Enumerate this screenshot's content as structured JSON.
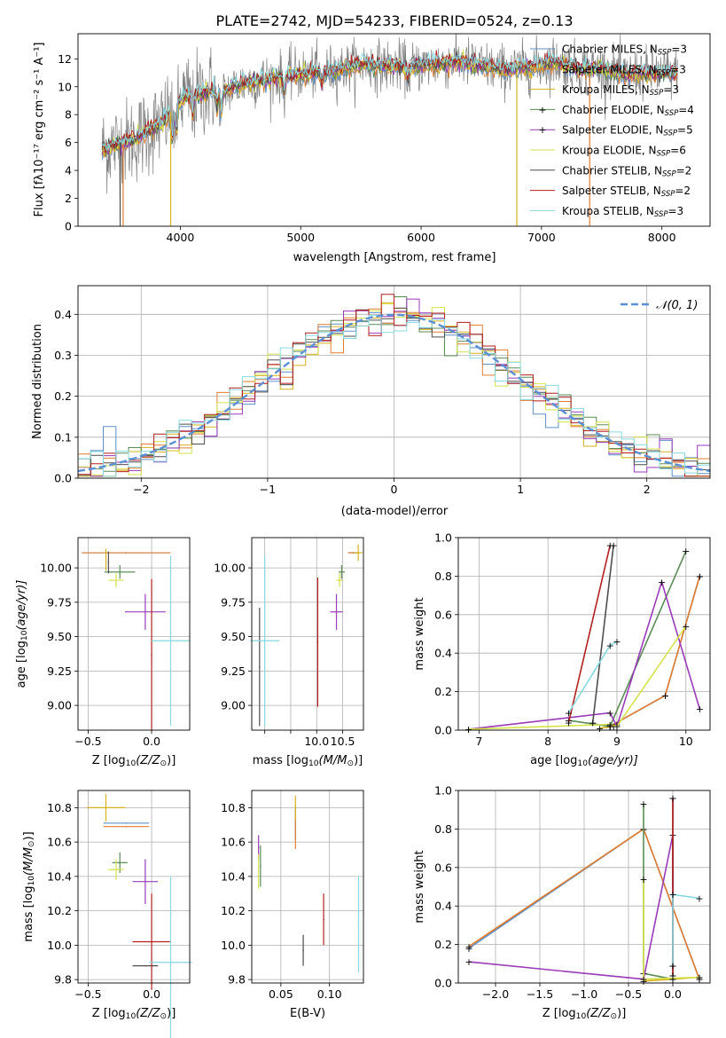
{
  "colors": {
    "Chabrier MILES": "#5f8fc7",
    "Salpeter MILES": "#e07d31",
    "Kroupa MILES": "#d6b11e",
    "Chabrier ELODIE": "#5c8b58",
    "Salpeter ELODIE": "#9a3bb8",
    "Kroupa ELODIE": "#d6e24b",
    "Chabrier STELIB": "#4d4d4d",
    "Salpeter STELIB": "#b41f1f",
    "Kroupa STELIB": "#86d9e0",
    "gauss": "#5b8fd6"
  },
  "chart_data": [
    {
      "id": "spectrum",
      "type": "line",
      "title": "PLATE=2742, MJD=54233, FIBERID=0524, z=0.13",
      "xlabel": "wavelength [Angstrom, rest frame]",
      "ylabel": "Flux [fλ10⁻¹⁷ erg cm⁻² s⁻¹ A⁻¹]",
      "xlim": [
        3150,
        8400
      ],
      "ylim": [
        0,
        13.8
      ],
      "xticks": [
        4000,
        5000,
        6000,
        7000,
        8000
      ],
      "yticks": [
        0,
        2,
        4,
        6,
        8,
        10,
        12
      ],
      "grid": false,
      "legend_position": "right",
      "continuum": {
        "x": [
          3350,
          3450,
          3550,
          3650,
          3750,
          3850,
          3950,
          4050,
          4150,
          4250,
          4350,
          4500,
          4700,
          4900,
          5100,
          5300,
          5500,
          5700,
          5900,
          6100,
          6300,
          6500,
          6700,
          6900,
          7100,
          7300,
          7500,
          7700,
          7900,
          8130
        ],
        "y": [
          5.5,
          5.8,
          6.0,
          6.4,
          6.9,
          7.4,
          8.6,
          9.3,
          9.4,
          9.8,
          9.6,
          10.2,
          10.5,
          10.8,
          11.0,
          11.2,
          11.6,
          11.5,
          11.4,
          11.6,
          11.8,
          11.5,
          11.2,
          11.4,
          11.8,
          11.3,
          11.3,
          10.8,
          11.0,
          10.9
        ]
      },
      "absorption_features": [
        {
          "x": 3934,
          "depth": 2.2
        },
        {
          "x": 3969,
          "depth": 2.0
        },
        {
          "x": 4102,
          "depth": 1.4
        },
        {
          "x": 4304,
          "depth": 1.3
        },
        {
          "x": 4340,
          "depth": 1.5
        },
        {
          "x": 4861,
          "depth": 1.1
        },
        {
          "x": 5175,
          "depth": 1.0
        },
        {
          "x": 5890,
          "depth": 0.8
        }
      ],
      "spikes": [
        {
          "x": 3500,
          "y_bottom": 0,
          "series": "Chabrier STELIB"
        },
        {
          "x": 3525,
          "y_bottom": 0,
          "series": "Salpeter MILES"
        },
        {
          "x": 3920,
          "y_bottom": 0,
          "series": "Kroupa MILES"
        },
        {
          "x": 6795,
          "y_bottom": 0,
          "series": "Kroupa MILES"
        },
        {
          "x": 7400,
          "y_bottom": 0,
          "series": "Salpeter MILES"
        }
      ],
      "series": [
        {
          "name": "Chabrier MILES",
          "n_ssp": 3
        },
        {
          "name": "Salpeter MILES",
          "n_ssp": 3
        },
        {
          "name": "Kroupa MILES",
          "n_ssp": 3
        },
        {
          "name": "Chabrier ELODIE",
          "n_ssp": 4
        },
        {
          "name": "Salpeter ELODIE",
          "n_ssp": 5
        },
        {
          "name": "Kroupa ELODIE",
          "n_ssp": 6
        },
        {
          "name": "Chabrier STELIB",
          "n_ssp": 2
        },
        {
          "name": "Salpeter STELIB",
          "n_ssp": 2
        },
        {
          "name": "Kroupa STELIB",
          "n_ssp": 3
        }
      ],
      "legend_labels": [
        {
          "pre": "Chabrier MILES, N",
          "sub": "SSP",
          "post": "=3"
        },
        {
          "pre": "Salpeter MILES, N",
          "sub": "SSP",
          "post": "=3"
        },
        {
          "pre": "Kroupa MILES, N",
          "sub": "SSP",
          "post": "=3"
        },
        {
          "pre": "Chabrier ELODIE, N",
          "sub": "SSP",
          "post": "=4"
        },
        {
          "pre": "Salpeter ELODIE, N",
          "sub": "SSP",
          "post": "=5"
        },
        {
          "pre": "Kroupa ELODIE, N",
          "sub": "SSP",
          "post": "=6"
        },
        {
          "pre": "Chabrier STELIB, N",
          "sub": "SSP",
          "post": "=2"
        },
        {
          "pre": "Salpeter STELIB, N",
          "sub": "SSP",
          "post": "=2"
        },
        {
          "pre": "Kroupa STELIB, N",
          "sub": "SSP",
          "post": "=3"
        }
      ]
    },
    {
      "id": "residuals",
      "type": "line",
      "xlabel": "(data-model)/error",
      "ylabel": "Normed distribution",
      "xlim": [
        -2.5,
        2.5
      ],
      "ylim": [
        0,
        0.47
      ],
      "xticks": [
        -2,
        -1,
        0,
        1,
        2
      ],
      "xtick_labels": [
        "−2",
        "−1",
        "0",
        "1",
        "2"
      ],
      "yticks": [
        0,
        0.1,
        0.2,
        0.3,
        0.4
      ],
      "ytick_labels": [
        "0.0",
        "0.1",
        "0.2",
        "0.3",
        "0.4"
      ],
      "grid": true,
      "legend_position": "upper right",
      "bins": {
        "start": -2.5,
        "width": 0.1,
        "count": 50
      },
      "reference_curve": {
        "name": "𝒩(0, 1)",
        "mean": 0,
        "sigma": 1
      }
    },
    {
      "id": "age_vs_Z",
      "type": "scatter",
      "xlabel_parts": [
        "Z [log",
        "10",
        "(Z/Z",
        "⊙",
        ")]"
      ],
      "ylabel_parts": [
        "age  [log",
        "10",
        "(age/yr)]"
      ],
      "xlim": [
        -0.58,
        0.3
      ],
      "ylim": [
        8.82,
        10.22
      ],
      "xticks": [
        -0.5,
        0.0
      ],
      "xtick_labels": [
        "−0.5",
        "0.0"
      ],
      "yticks": [
        9.0,
        9.25,
        9.5,
        9.75,
        10.0
      ],
      "ytick_labels": [
        "9.00",
        "9.25",
        "9.50",
        "9.75",
        "10.00"
      ],
      "grid": true,
      "points": [
        {
          "series": "Chabrier MILES",
          "x": -0.2,
          "y": 10.11,
          "xerr": 0.35,
          "yerr": 0.0
        },
        {
          "series": "Salpeter MILES",
          "x": -0.2,
          "y": 10.11,
          "xerr": 0.35,
          "yerr": 0.0
        },
        {
          "series": "Kroupa MILES",
          "x": -0.36,
          "y": 10.06,
          "xerr": 0.0,
          "yerr": 0.08
        },
        {
          "series": "Chabrier ELODIE",
          "x": -0.25,
          "y": 9.97,
          "xerr": 0.12,
          "yerr": 0.05
        },
        {
          "series": "Salpeter ELODIE",
          "x": -0.05,
          "y": 9.68,
          "xerr": 0.16,
          "yerr": 0.13
        },
        {
          "series": "Kroupa ELODIE",
          "x": -0.28,
          "y": 9.91,
          "xerr": 0.06,
          "yerr": 0.05
        },
        {
          "series": "Chabrier STELIB",
          "x": -0.34,
          "y": 10.04,
          "xerr": 0.0,
          "yerr": 0.08
        },
        {
          "series": "Salpeter STELIB",
          "x": 0.0,
          "y": 9.37,
          "xerr": 0.0,
          "yerr": 0.55
        },
        {
          "series": "Kroupa STELIB",
          "x": 0.15,
          "y": 9.47,
          "xerr": 0.15,
          "yerr": 0.62
        }
      ]
    },
    {
      "id": "age_vs_mass",
      "type": "scatter",
      "xlabel_parts": [
        "mass [log",
        "10",
        "(M/M",
        "⊙",
        ")]"
      ],
      "xlim": [
        8.75,
        10.9
      ],
      "ylim": [
        8.82,
        10.22
      ],
      "xticks": [
        9.0,
        9.5,
        10.0,
        10.5
      ],
      "xtick_labels": [
        "",
        "",
        "10.0",
        "10.5"
      ],
      "yticks": [
        9.0,
        9.25,
        9.5,
        9.75,
        10.0
      ],
      "ytick_labels": [
        "9.00",
        "9.25",
        "9.50",
        "9.75",
        "10.00"
      ],
      "grid": true,
      "points": [
        {
          "series": "Chabrier MILES",
          "x": 10.72,
          "y": 10.11,
          "xerr": 0.1,
          "yerr": 0.0
        },
        {
          "series": "Salpeter MILES",
          "x": 10.7,
          "y": 10.11,
          "xerr": 0.1,
          "yerr": 0.0
        },
        {
          "series": "Kroupa MILES",
          "x": 10.8,
          "y": 10.11,
          "xerr": 0.08,
          "yerr": 0.06
        },
        {
          "series": "Chabrier ELODIE",
          "x": 10.48,
          "y": 9.97,
          "xerr": 0.06,
          "yerr": 0.05
        },
        {
          "series": "Salpeter ELODIE",
          "x": 10.38,
          "y": 9.68,
          "xerr": 0.12,
          "yerr": 0.13
        },
        {
          "series": "Kroupa ELODIE",
          "x": 10.44,
          "y": 9.91,
          "xerr": 0.06,
          "yerr": 0.05
        },
        {
          "series": "Chabrier STELIB",
          "x": 8.9,
          "y": 9.28,
          "xerr": 0.0,
          "yerr": 0.43
        },
        {
          "series": "Salpeter STELIB",
          "x": 10.02,
          "y": 9.46,
          "xerr": 0.0,
          "yerr": 0.47
        },
        {
          "series": "Kroupa STELIB",
          "x": 9.0,
          "y": 9.47,
          "xerr": 0.28,
          "yerr": 0.62
        }
      ]
    },
    {
      "id": "mass_weight_vs_age",
      "type": "line",
      "xlabel_parts": [
        "age  [log",
        "10",
        "(age/yr)]"
      ],
      "ylabel": "mass weight",
      "xlim": [
        6.7,
        10.35
      ],
      "ylim": [
        0,
        1.0
      ],
      "xticks": [
        7,
        8,
        9,
        10
      ],
      "yticks": [
        0,
        0.2,
        0.4,
        0.6,
        0.8,
        1.0
      ],
      "ytick_labels": [
        "0.0",
        "0.2",
        "0.4",
        "0.6",
        "0.8",
        "1.0"
      ],
      "grid": true,
      "series": [
        {
          "name": "Chabrier MILES",
          "x": [
            8.9,
            9.7,
            10.2
          ],
          "y": [
            0.02,
            0.18,
            0.8
          ]
        },
        {
          "name": "Salpeter MILES",
          "x": [
            8.9,
            9.7,
            10.2
          ],
          "y": [
            0.02,
            0.18,
            0.8
          ]
        },
        {
          "name": "Kroupa MILES",
          "x": [
            8.75,
            8.95,
            9.0
          ],
          "y": [
            0.01,
            0.02,
            0.03
          ]
        },
        {
          "name": "Chabrier ELODIE",
          "x": [
            8.3,
            8.9,
            10.0
          ],
          "y": [
            0.05,
            0.02,
            0.93
          ]
        },
        {
          "name": "Salpeter ELODIE",
          "x": [
            6.85,
            8.9,
            9.0,
            9.65,
            10.2
          ],
          "y": [
            0.005,
            0.09,
            0.02,
            0.77,
            0.11
          ]
        },
        {
          "name": "Kroupa ELODIE",
          "x": [
            6.85,
            8.9,
            9.0,
            10.0
          ],
          "y": [
            0.005,
            0.03,
            0.02,
            0.54
          ]
        },
        {
          "name": "Chabrier STELIB",
          "x": [
            8.65,
            8.95
          ],
          "y": [
            0.04,
            0.96
          ]
        },
        {
          "name": "Salpeter STELIB",
          "x": [
            8.3,
            8.9
          ],
          "y": [
            0.04,
            0.96
          ]
        },
        {
          "name": "Kroupa STELIB",
          "x": [
            8.3,
            8.9,
            9.0
          ],
          "y": [
            0.09,
            0.44,
            0.46
          ]
        }
      ]
    },
    {
      "id": "mass_vs_Z",
      "type": "scatter",
      "xlabel_parts": [
        "Z [log",
        "10",
        "(Z/Z",
        "⊙",
        ")]"
      ],
      "ylabel_parts": [
        "mass [log",
        "10",
        "(M/M",
        "⊙",
        ")]"
      ],
      "xlim": [
        -0.58,
        0.3
      ],
      "ylim": [
        9.78,
        10.9
      ],
      "xticks": [
        -0.5,
        0.0
      ],
      "xtick_labels": [
        "−0.5",
        "0.0"
      ],
      "yticks": [
        9.8,
        10.0,
        10.2,
        10.4,
        10.6,
        10.8
      ],
      "ytick_labels": [
        "9.8",
        "10.0",
        "10.2",
        "10.4",
        "10.6",
        "10.8"
      ],
      "grid": true,
      "points": [
        {
          "series": "Chabrier MILES",
          "x": -0.2,
          "y": 10.71,
          "xerr": 0.18,
          "yerr": 0.0
        },
        {
          "series": "Salpeter MILES",
          "x": -0.2,
          "y": 10.69,
          "xerr": 0.18,
          "yerr": 0.0
        },
        {
          "series": "Kroupa MILES",
          "x": -0.36,
          "y": 10.8,
          "xerr": 0.15,
          "yerr": 0.08
        },
        {
          "series": "Chabrier ELODIE",
          "x": -0.25,
          "y": 10.48,
          "xerr": 0.06,
          "yerr": 0.06
        },
        {
          "series": "Salpeter ELODIE",
          "x": -0.05,
          "y": 10.37,
          "xerr": 0.1,
          "yerr": 0.13
        },
        {
          "series": "Kroupa ELODIE",
          "x": -0.28,
          "y": 10.44,
          "xerr": 0.06,
          "yerr": 0.06
        },
        {
          "series": "Chabrier STELIB",
          "x": -0.05,
          "y": 9.88,
          "xerr": 0.1,
          "yerr": 0.0
        },
        {
          "series": "Salpeter STELIB",
          "x": 0.0,
          "y": 10.02,
          "xerr": 0.15,
          "yerr": 0.28
        },
        {
          "series": "Kroupa STELIB",
          "x": 0.15,
          "y": 9.9,
          "xerr": 0.17,
          "yerr": 0.5
        }
      ]
    },
    {
      "id": "mass_vs_EBV",
      "type": "scatter",
      "xlabel": "E(B-V)",
      "xlim": [
        0.02,
        0.135
      ],
      "ylim": [
        9.78,
        10.9
      ],
      "xticks": [
        0.05,
        0.1
      ],
      "xtick_labels": [
        "0.05",
        "0.10"
      ],
      "yticks": [
        9.8,
        10.0,
        10.2,
        10.4,
        10.6,
        10.8
      ],
      "ytick_labels": [
        "9.8",
        "10.0",
        "10.2",
        "10.4",
        "10.6",
        "10.8"
      ],
      "grid": true,
      "points": [
        {
          "series": "Chabrier MILES",
          "x": 0.065,
          "y": 10.71,
          "xerr": 0.0,
          "yerr": 0.1
        },
        {
          "series": "Salpeter MILES",
          "x": 0.065,
          "y": 10.66,
          "xerr": 0.0,
          "yerr": 0.1
        },
        {
          "series": "Kroupa MILES",
          "x": 0.065,
          "y": 10.8,
          "xerr": 0.0,
          "yerr": 0.07
        },
        {
          "series": "Chabrier ELODIE",
          "x": 0.029,
          "y": 10.46,
          "xerr": 0.0,
          "yerr": 0.12
        },
        {
          "series": "Salpeter ELODIE",
          "x": 0.027,
          "y": 10.57,
          "xerr": 0.0,
          "yerr": 0.07
        },
        {
          "series": "Kroupa ELODIE",
          "x": 0.027,
          "y": 10.43,
          "xerr": 0.0,
          "yerr": 0.1
        },
        {
          "series": "Chabrier STELIB",
          "x": 0.073,
          "y": 9.97,
          "xerr": 0.0,
          "yerr": 0.09
        },
        {
          "series": "Salpeter STELIB",
          "x": 0.094,
          "y": 10.15,
          "xerr": 0.0,
          "yerr": 0.15
        },
        {
          "series": "Kroupa STELIB",
          "x": 0.13,
          "y": 10.12,
          "xerr": 0.0,
          "yerr": 0.28
        }
      ]
    },
    {
      "id": "mass_weight_vs_Z",
      "type": "line",
      "xlabel_parts": [
        "Z [log",
        "10",
        "(Z/Z",
        "⊙",
        ")]"
      ],
      "ylabel": "mass weight",
      "xlim": [
        -2.42,
        0.42
      ],
      "ylim": [
        0,
        1.0
      ],
      "xticks": [
        -2.0,
        -1.5,
        -1.0,
        -0.5,
        0.0
      ],
      "xtick_labels": [
        "−2.0",
        "−1.5",
        "−1.0",
        "−0.5",
        "0.0"
      ],
      "yticks": [
        0,
        0.2,
        0.4,
        0.6,
        0.8,
        1.0
      ],
      "ytick_labels": [
        "0.0",
        "0.2",
        "0.4",
        "0.6",
        "0.8",
        "1.0"
      ],
      "grid": true,
      "series": [
        {
          "name": "Chabrier MILES",
          "x": [
            0.3,
            -0.33,
            -2.3
          ],
          "y": [
            0.02,
            0.8,
            0.18
          ]
        },
        {
          "name": "Salpeter MILES",
          "x": [
            0.3,
            -0.33,
            -2.3
          ],
          "y": [
            0.02,
            0.8,
            0.19
          ]
        },
        {
          "name": "Kroupa MILES",
          "x": [
            -0.33,
            0.0,
            0.3
          ],
          "y": [
            0.01,
            0.02,
            0.03
          ]
        },
        {
          "name": "Chabrier ELODIE",
          "x": [
            -0.33,
            -0.33,
            0.0
          ],
          "y": [
            0.93,
            0.05,
            0.02
          ]
        },
        {
          "name": "Salpeter ELODIE",
          "x": [
            -2.3,
            -0.33,
            0.0,
            0.0
          ],
          "y": [
            0.11,
            0.02,
            0.77,
            0.09
          ]
        },
        {
          "name": "Kroupa ELODIE",
          "x": [
            -0.33,
            -0.33,
            0.3
          ],
          "y": [
            0.54,
            0.02,
            0.03
          ]
        },
        {
          "name": "Chabrier STELIB",
          "x": [
            0.0,
            0.0
          ],
          "y": [
            0.04,
            0.96
          ]
        },
        {
          "name": "Salpeter STELIB",
          "x": [
            0.0,
            0.0
          ],
          "y": [
            0.04,
            0.96
          ]
        },
        {
          "name": "Kroupa STELIB",
          "x": [
            0.0,
            0.0,
            0.3
          ],
          "y": [
            0.09,
            0.46,
            0.44
          ]
        }
      ]
    }
  ]
}
